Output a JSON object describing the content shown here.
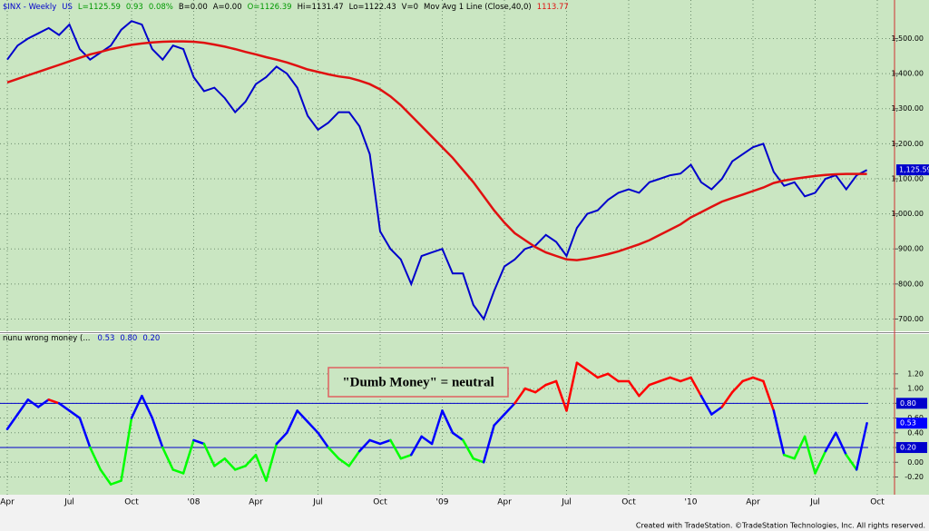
{
  "chart_data": [
    {
      "type": "line",
      "categories": [
        "Apr",
        null,
        null,
        null,
        null,
        null,
        "Jul",
        null,
        null,
        null,
        null,
        null,
        "Oct",
        null,
        null,
        null,
        null,
        null,
        "'08",
        null,
        null,
        null,
        null,
        null,
        "Apr",
        null,
        null,
        null,
        null,
        null,
        "Jul",
        null,
        null,
        null,
        null,
        null,
        "Oct",
        null,
        null,
        null,
        null,
        null,
        "'09",
        null,
        null,
        null,
        null,
        null,
        "Apr",
        null,
        null,
        null,
        null,
        null,
        "Jul",
        null,
        null,
        null,
        null,
        null,
        "Oct",
        null,
        null,
        null,
        null,
        null,
        "'10",
        null,
        null,
        null,
        null,
        null,
        "Apr",
        null,
        null,
        null,
        null,
        null,
        "Jul",
        null,
        null,
        null,
        null,
        null,
        "Oct"
      ],
      "series": [
        {
          "name": "$INX - Weekly",
          "color": "#0000cc",
          "stats": [
            {
              "text": "US",
              "color": "#0000cc"
            },
            {
              "text": "L=1125.59",
              "color": "#009900"
            },
            {
              "text": "0.93",
              "color": "#009900"
            },
            {
              "text": "0.08%",
              "color": "#009900"
            },
            {
              "text": "B=0.00",
              "color": "#000000"
            },
            {
              "text": "A=0.00",
              "color": "#000000"
            },
            {
              "text": "O=1126.39",
              "color": "#009900"
            },
            {
              "text": "Hi=1131.47",
              "color": "#000000"
            },
            {
              "text": "Lo=1122.43",
              "color": "#000000"
            },
            {
              "text": "V=0",
              "color": "#000000"
            }
          ],
          "last_label": {
            "value": 1125.59,
            "label": "1,125.59"
          },
          "values": [
            1440,
            1480,
            1500,
            1515,
            1530,
            1510,
            1540,
            1470,
            1440,
            1460,
            1480,
            1525,
            1550,
            1540,
            1470,
            1440,
            1480,
            1470,
            1390,
            1350,
            1360,
            1330,
            1290,
            1320,
            1370,
            1390,
            1420,
            1400,
            1360,
            1280,
            1240,
            1260,
            1290,
            1290,
            1250,
            1170,
            950,
            900,
            870,
            800,
            880,
            890,
            900,
            830,
            830,
            740,
            700,
            780,
            850,
            870,
            900,
            910,
            940,
            920,
            880,
            960,
            1000,
            1010,
            1040,
            1060,
            1070,
            1060,
            1090,
            1100,
            1110,
            1115,
            1140,
            1090,
            1070,
            1100,
            1150,
            1170,
            1190,
            1200,
            1120,
            1080,
            1090,
            1050,
            1060,
            1100,
            1110,
            1070,
            1110,
            1125,
            null
          ]
        },
        {
          "name": "Mov Avg 1 Line (Close,40,0)",
          "color": "#e01010",
          "stats": [
            {
              "text": "1113.77",
              "color": "#e01010"
            }
          ],
          "values": [
            1375,
            1385,
            1395,
            1405,
            1415,
            1425,
            1435,
            1445,
            1455,
            1462,
            1470,
            1476,
            1482,
            1486,
            1489,
            1491,
            1492,
            1492,
            1491,
            1488,
            1483,
            1477,
            1470,
            1462,
            1455,
            1447,
            1440,
            1432,
            1422,
            1412,
            1405,
            1398,
            1392,
            1388,
            1380,
            1370,
            1355,
            1335,
            1310,
            1280,
            1250,
            1220,
            1190,
            1160,
            1125,
            1090,
            1050,
            1010,
            975,
            945,
            925,
            905,
            890,
            880,
            870,
            868,
            872,
            878,
            885,
            893,
            903,
            913,
            925,
            940,
            955,
            970,
            990,
            1005,
            1020,
            1035,
            1045,
            1055,
            1065,
            1075,
            1088,
            1095,
            1100,
            1104,
            1108,
            1111,
            1113,
            1114,
            1114,
            1114,
            null
          ]
        }
      ],
      "ylim": [
        665,
        1610
      ],
      "yticks": [
        {
          "value": 700,
          "label": "700.00"
        },
        {
          "value": 800,
          "label": "800.00"
        },
        {
          "value": 900,
          "label": "900.00"
        },
        {
          "value": 1000,
          "label": "1,000.00"
        },
        {
          "value": 1100,
          "label": "1,100.00"
        },
        {
          "value": 1200,
          "label": "1,200.00"
        },
        {
          "value": 1300,
          "label": "1,300.00"
        },
        {
          "value": 1400,
          "label": "1,400.00"
        },
        {
          "value": 1500,
          "label": "1,500.00"
        }
      ],
      "grid": true,
      "footer": "Created with TradeStation. ©TradeStation Technologies, Inc. All rights reserved."
    },
    {
      "type": "line",
      "series": [
        {
          "name": "nunu wrong money (...",
          "values": [
            0.45,
            0.65,
            0.85,
            0.75,
            0.85,
            0.8,
            0.7,
            0.6,
            0.2,
            -0.1,
            -0.3,
            -0.25,
            0.6,
            0.9,
            0.6,
            0.2,
            -0.1,
            -0.15,
            0.3,
            0.25,
            -0.05,
            0.05,
            -0.1,
            -0.05,
            0.1,
            -0.25,
            0.25,
            0.4,
            0.7,
            0.55,
            0.4,
            0.2,
            0.05,
            -0.05,
            0.15,
            0.3,
            0.25,
            0.3,
            0.05,
            0.1,
            0.35,
            0.25,
            0.7,
            0.4,
            0.3,
            0.05,
            0.0,
            0.5,
            0.65,
            0.8,
            1.0,
            0.95,
            1.05,
            1.1,
            0.7,
            1.35,
            1.25,
            1.15,
            1.2,
            1.1,
            1.1,
            0.9,
            1.05,
            1.1,
            1.15,
            1.1,
            1.15,
            0.9,
            0.65,
            0.75,
            0.95,
            1.1,
            1.15,
            1.1,
            0.7,
            0.1,
            0.05,
            0.35,
            -0.15,
            0.15,
            0.4,
            0.1,
            -0.1,
            0.53,
            null
          ],
          "last_label": {
            "value": 0.53,
            "label": "0.53"
          }
        }
      ],
      "levels": [
        {
          "value": 0.8,
          "label": "0.80"
        },
        {
          "value": 0.2,
          "label": "0.20"
        }
      ],
      "colors": {
        "above": "#ff0000",
        "between": "#0000ff",
        "below": "#00ff00",
        "level": "#0000cc"
      },
      "ylim": [
        -0.44,
        1.74
      ],
      "yticks": [
        {
          "value": -0.2,
          "label": "-0.20"
        },
        {
          "value": 0,
          "label": "0.00"
        },
        {
          "value": 0.2,
          "label": "0.20"
        },
        {
          "value": 0.4,
          "label": "0.40"
        },
        {
          "value": 0.6,
          "label": "0.60"
        },
        {
          "value": 0.8,
          "label": "0.80"
        },
        {
          "value": 1,
          "label": "1.00"
        },
        {
          "value": 1.2,
          "label": "1.20"
        }
      ],
      "grid": true,
      "annotation": "\"Dumb Money\" = neutral"
    }
  ]
}
